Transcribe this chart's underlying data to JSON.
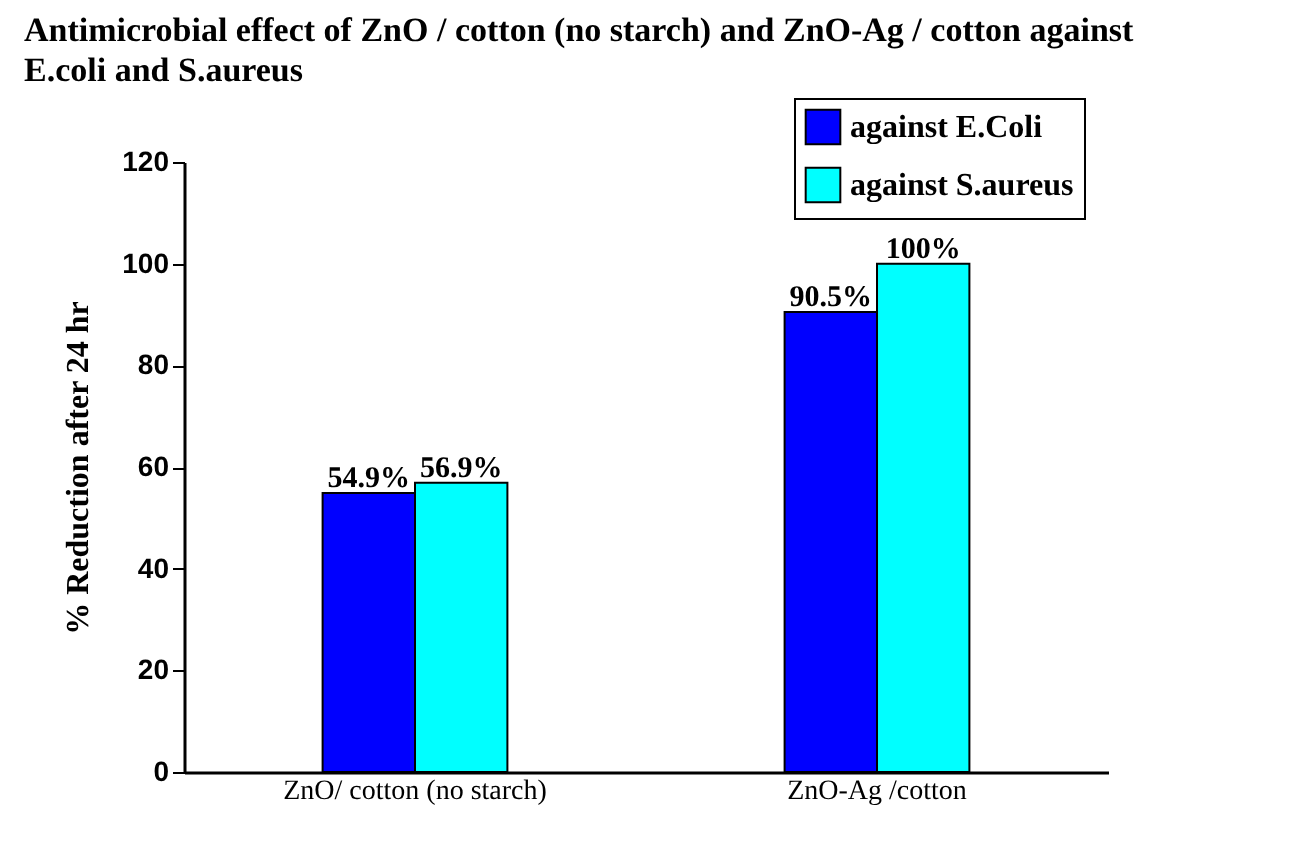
{
  "chart_data": {
    "type": "bar",
    "title": "Antimicrobial effect of ZnO / cotton (no starch) and ZnO-Ag / cotton against E.coli and S.aureus",
    "ylabel": "% Reduction after 24 hr",
    "categories": [
      "ZnO/ cotton (no starch)",
      "ZnO-Ag /cotton"
    ],
    "series": [
      {
        "name": "against E.Coli",
        "color": "#0000ff",
        "values": [
          54.9,
          90.5
        ],
        "value_labels": [
          "54.9%",
          "90.5%"
        ]
      },
      {
        "name": "against S.aureus",
        "color": "#00ffff",
        "values": [
          56.9,
          100
        ],
        "value_labels": [
          "56.9%",
          "100%"
        ]
      }
    ],
    "ylim": [
      0,
      120
    ],
    "yticks": [
      0,
      20,
      40,
      60,
      80,
      100,
      120
    ],
    "grid": false,
    "legend": "top right"
  }
}
